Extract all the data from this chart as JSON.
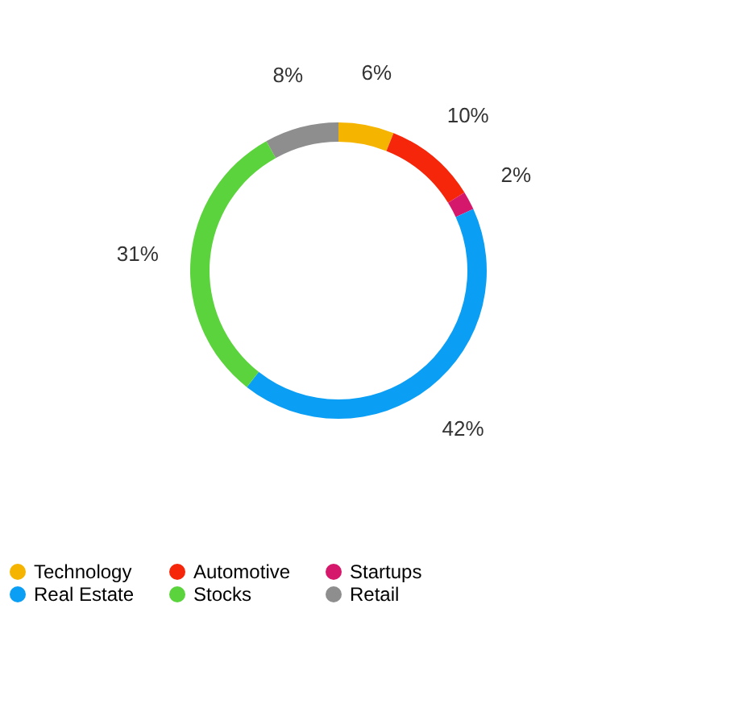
{
  "chart_data": {
    "type": "donut",
    "categories": [
      "Technology",
      "Automotive",
      "Startups",
      "Real Estate",
      "Stocks",
      "Retail"
    ],
    "values": [
      6,
      10,
      2,
      42,
      31,
      8
    ],
    "value_labels": [
      "6%",
      "10%",
      "2%",
      "42%",
      "31%",
      "8%"
    ],
    "colors": [
      "#f5b400",
      "#f5260a",
      "#d6186c",
      "#0a9ff5",
      "#5bd33c",
      "#8e8e8e"
    ],
    "legend": "bottom"
  }
}
